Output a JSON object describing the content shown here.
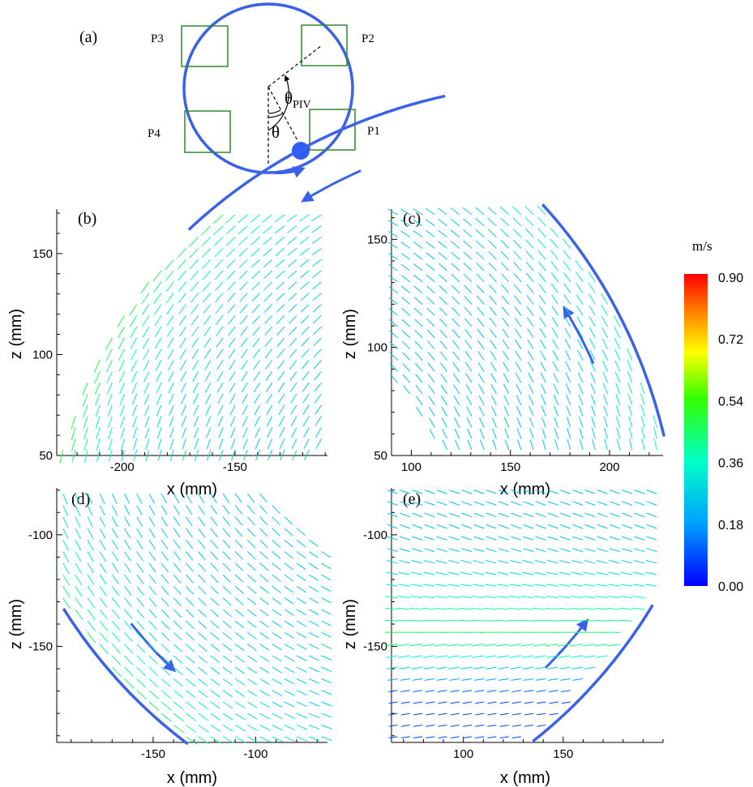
{
  "schematic": {
    "panel_label": "(a)",
    "probe_labels": [
      "P1",
      "P2",
      "P3",
      "P4"
    ],
    "theta_piv_label": "θ",
    "theta_piv_sub": "PIV",
    "theta_label": "θ",
    "colors": {
      "tank": "#3a62e8",
      "probe": "#2e8b2e",
      "ball": "#2f5cf0"
    }
  },
  "colorbar": {
    "unit": "m/s",
    "ticks": [
      "0.90",
      "0.72",
      "0.54",
      "0.36",
      "0.18",
      "0.00"
    ],
    "min": 0.0,
    "max": 0.9,
    "colormap": "jet"
  },
  "chart_data": [
    {
      "panel_label": "(b)",
      "type": "quiver",
      "xlabel": "x (mm)",
      "ylabel": "z (mm)",
      "xlim": [
        -229,
        -109
      ],
      "ylim": [
        50,
        172
      ],
      "xticks": [
        -200,
        -150
      ],
      "yticks": [
        50,
        100,
        150
      ],
      "wall": {
        "center": [
          0,
          0
        ],
        "radius": 235,
        "theta_deg": [
          104,
          136.5
        ],
        "rotation": "counterclockwise",
        "color": "#3a62e8"
      },
      "flow": {
        "shape": "arc-aligned",
        "speed_at_wall": 0.52,
        "speed_interior": 0.27,
        "region": "right-of-wall, clipped at x≈-120, z>50"
      }
    },
    {
      "panel_label": "(c)",
      "type": "quiver",
      "xlabel": "x (mm)",
      "ylabel": "z (mm)",
      "xlim": [
        90,
        227
      ],
      "ylim": [
        50,
        164
      ],
      "xticks": [
        100,
        150,
        200
      ],
      "yticks": [
        50,
        100,
        150
      ],
      "wall": {
        "center": [
          0,
          0
        ],
        "radius": 235,
        "theta_deg": [
          14.5,
          45
        ],
        "rotation": "counterclockwise",
        "color": "#3a62e8"
      },
      "flow": {
        "shape": "arc-aligned",
        "speed_at_wall": 0.4,
        "speed_interior": 0.25,
        "region": "left-of-wall"
      }
    },
    {
      "panel_label": "(d)",
      "type": "quiver",
      "xlabel": "x (mm)",
      "ylabel": "z (mm)",
      "xlim": [
        -197,
        -65
      ],
      "ylim": [
        -193,
        -79
      ],
      "xticks": [
        -150,
        -100
      ],
      "yticks": [
        -100,
        -150
      ],
      "wall": {
        "center": [
          0,
          0
        ],
        "radius": 235,
        "theta_deg": [
          214.5,
          235.5
        ],
        "rotation": "counterclockwise",
        "color": "#3a62e8"
      },
      "flow": {
        "shape": "arc-aligned",
        "speed_at_wall": 0.48,
        "speed_interior": 0.26,
        "region": "above-right-of-wall"
      }
    },
    {
      "panel_label": "(e)",
      "type": "quiver",
      "xlabel": "x (mm)",
      "ylabel": "z (mm)",
      "xlim": [
        64,
        200
      ],
      "ylim": [
        -193,
        -79
      ],
      "xticks": [
        100,
        150
      ],
      "yticks": [
        -100,
        -150
      ],
      "wall": {
        "center": [
          0,
          0
        ],
        "radius": 235,
        "theta_deg": [
          305,
          326
        ],
        "rotation": "counterclockwise",
        "color": "#3a62e8"
      },
      "flow": {
        "shape": "leftward-jet",
        "jet_center_z": -147,
        "speed_jet": 0.46,
        "speed_upper": 0.24,
        "speed_lower": 0.08,
        "region": "above-left-of-wall"
      }
    }
  ]
}
